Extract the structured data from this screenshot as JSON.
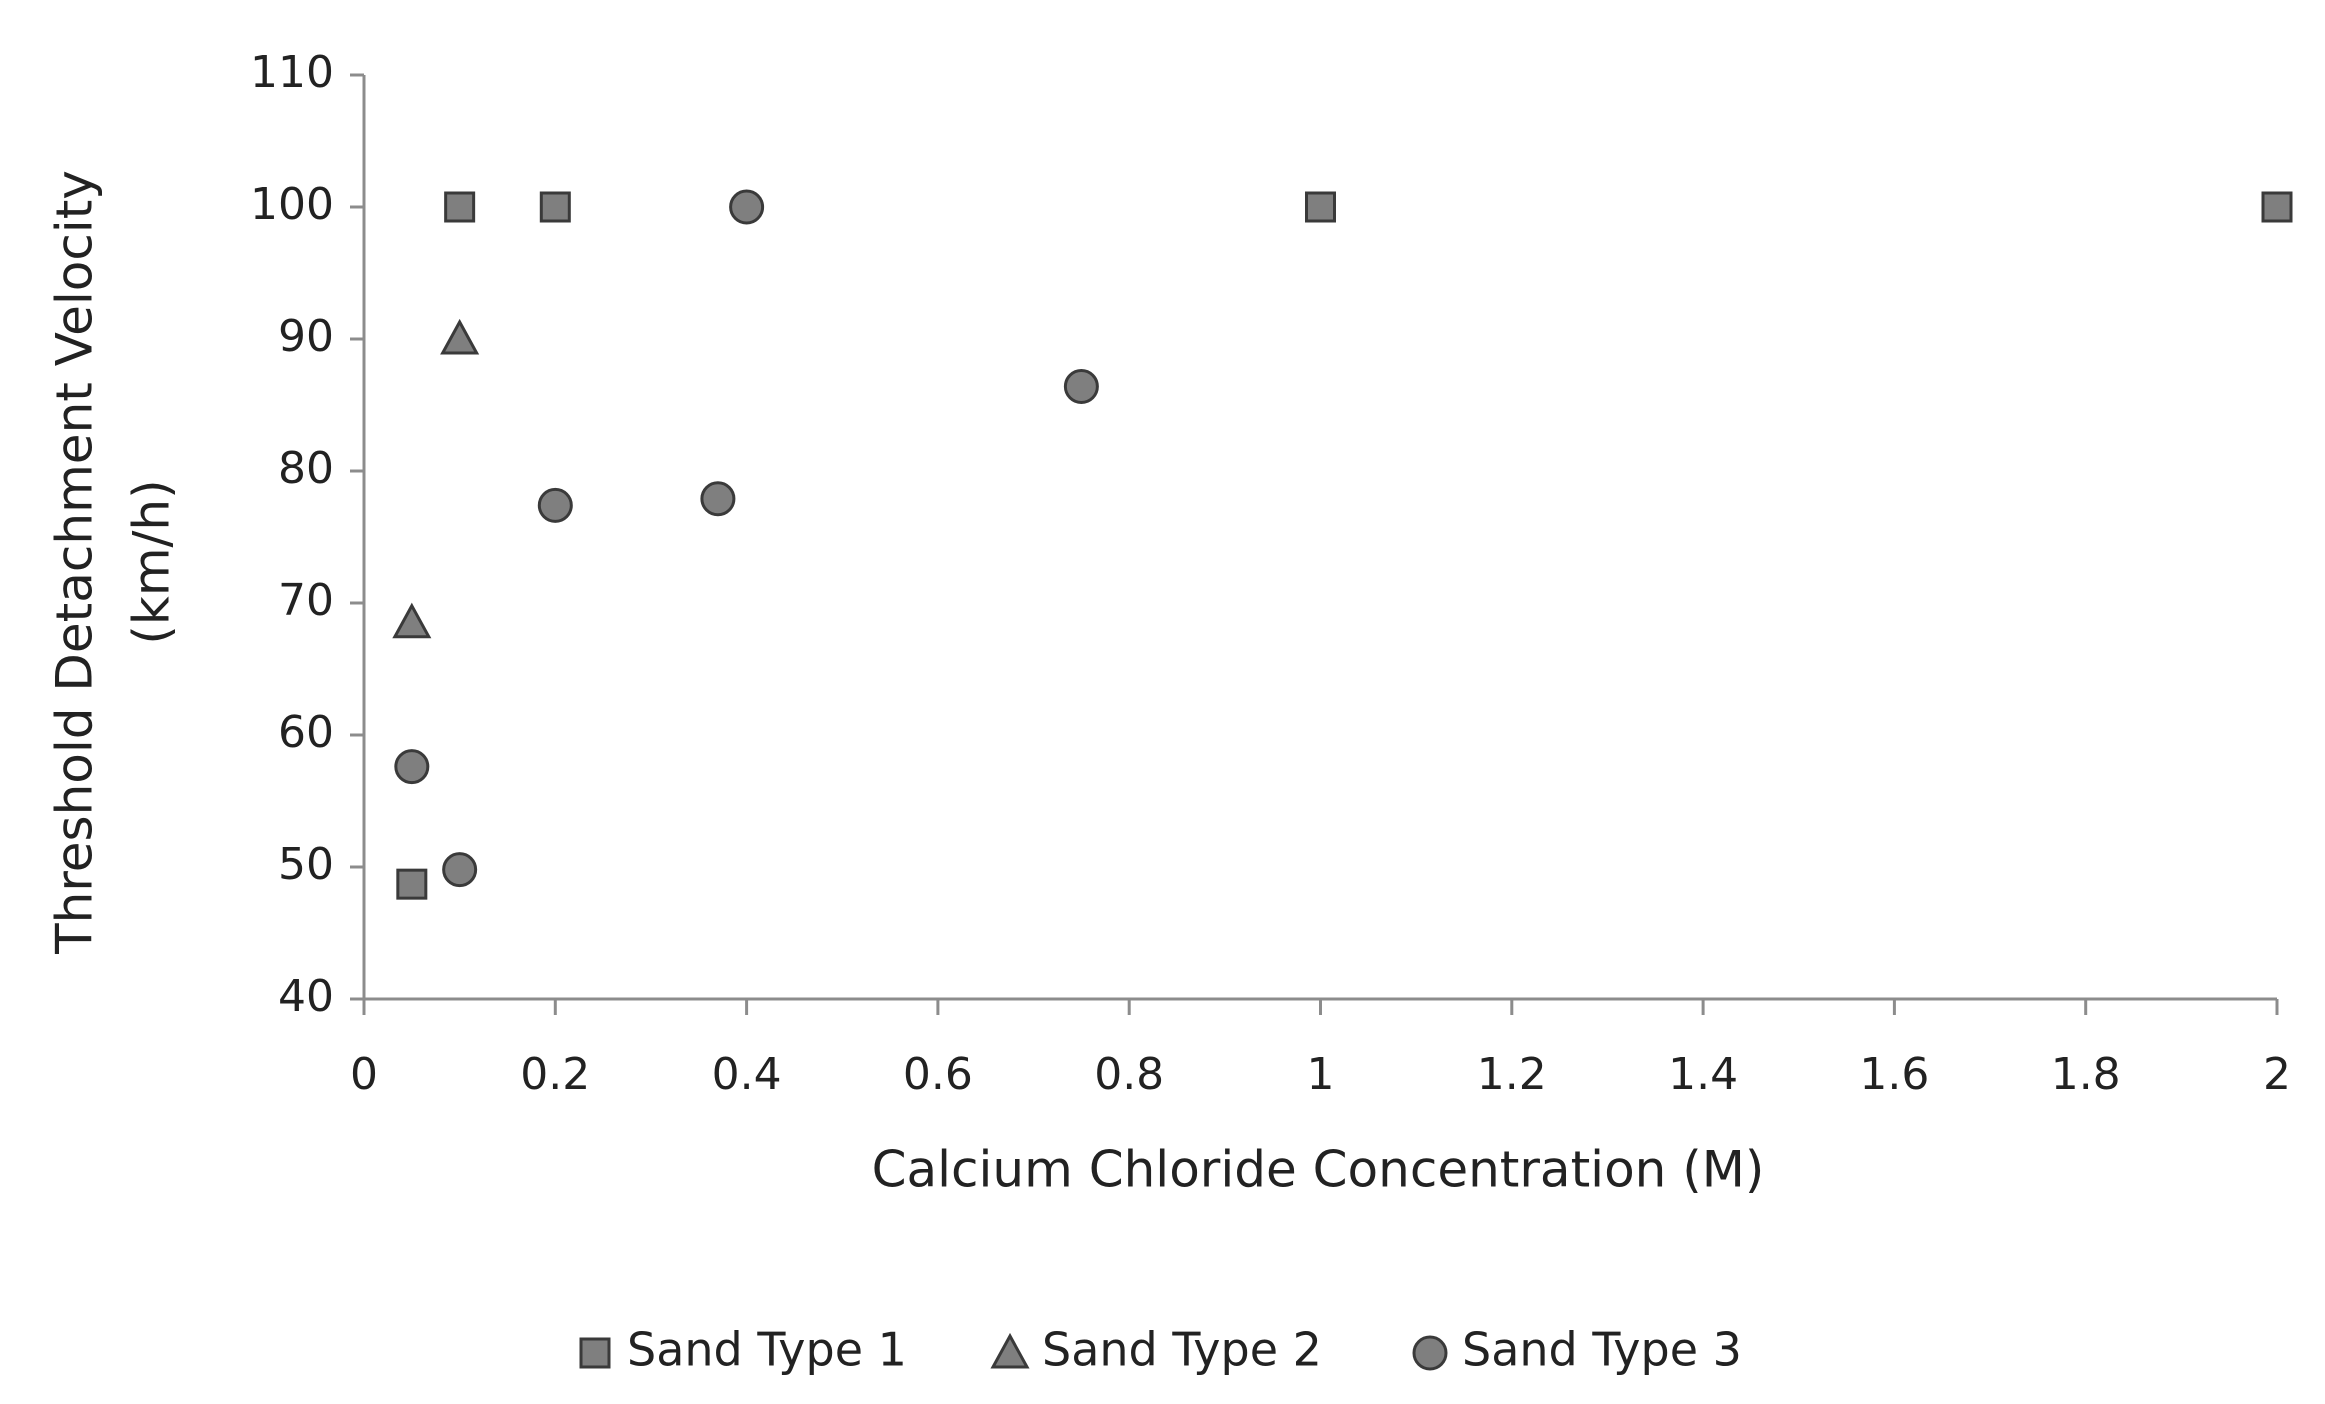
{
  "chart_data": {
    "type": "scatter",
    "x_label": "Calcium Chloride Concentration (M)",
    "y_label": [
      "Threshold Detachment Velocity",
      "(km/h)"
    ],
    "xlim": [
      0,
      2
    ],
    "xticks": [
      0,
      0.2,
      0.4,
      0.6,
      0.8,
      1,
      1.2,
      1.4,
      1.6,
      1.8,
      2
    ],
    "ylim": [
      40,
      110
    ],
    "yticks": [
      40,
      50,
      60,
      70,
      80,
      90,
      100,
      110
    ],
    "legend": "bottom",
    "series": [
      {
        "name": "Sand Type 1",
        "marker": "square",
        "color": "#7f7f7f",
        "x": [
          0.05,
          0.1,
          0.2,
          1,
          2
        ],
        "values": [
          48.7,
          100,
          100,
          100,
          100
        ]
      },
      {
        "name": "Sand Type 2",
        "marker": "triangle",
        "color": "#7f7f7f",
        "x": [
          0.05,
          0.1
        ],
        "values": [
          68.5,
          90
        ]
      },
      {
        "name": "Sand Type 3",
        "marker": "circle",
        "color": "#7f7f7f",
        "x": [
          0.05,
          0.1,
          0.2,
          0.37,
          0.4,
          0.75
        ],
        "values": [
          57.6,
          49.8,
          77.4,
          77.9,
          100,
          86.4
        ]
      }
    ]
  }
}
